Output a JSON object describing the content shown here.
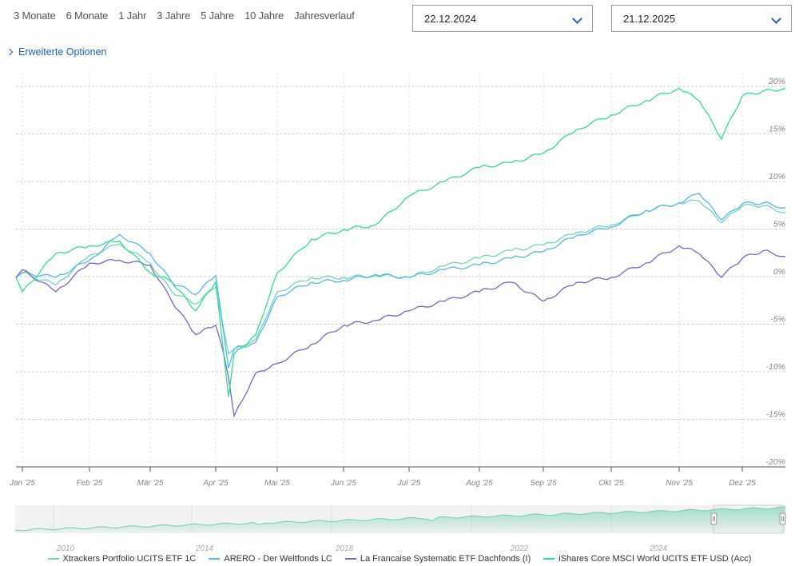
{
  "range_buttons": [
    "3 Monate",
    "6 Monate",
    "1 Jahr",
    "3 Jahre",
    "5 Jahre",
    "10 Jahre",
    "Jahresverlauf"
  ],
  "advanced_options_label": "Erweiterte Optionen",
  "date_from": "22.12.2024",
  "date_to": "21.12.2025",
  "colors": {
    "xtrackers": "#6fd9b4",
    "arero": "#52b8f0",
    "lafrancaise": "#7468cc",
    "ishares": "#2ee08c",
    "grid": "#cfcfcf",
    "axis": "#555555",
    "tick_label": "#888888",
    "link": "#1f5fc4"
  },
  "chart_data": {
    "type": "line",
    "title": "",
    "xlabel": "",
    "ylabel": "",
    "ylim": [
      -20,
      20
    ],
    "y_ticks": [
      "20%",
      "15%",
      "10%",
      "5%",
      "0%",
      "-5%",
      "-10%",
      "-15%",
      "-20%"
    ],
    "x_ticks": [
      "Jan '25",
      "Feb '25",
      "Mär '25",
      "Apr '25",
      "Mai '25",
      "Jun '25",
      "Jul '25",
      "Aug '25",
      "Sep '25",
      "Okt '25",
      "Nov '25",
      "Dez '25"
    ],
    "x": [
      "Dez 22 '24",
      "Jan 1",
      "Jan 15",
      "Feb 1",
      "Feb 15",
      "Mär 1",
      "Mär 10",
      "Mär 20",
      "Apr 1",
      "Apr 4",
      "Apr 8",
      "Apr 10",
      "Apr 22",
      "Mai 1",
      "Mai 15",
      "Jun 1",
      "Jun 15",
      "Jul 1",
      "Jul 15",
      "Aug 1",
      "Aug 15",
      "Sep 1",
      "Sep 15",
      "Okt 1",
      "Okt 15",
      "Nov 1",
      "Nov 10",
      "Nov 20",
      "Dez 1",
      "Dez 10",
      "Dez 19"
    ],
    "series": [
      {
        "name": "Xtrackers Portfolio UCITS ETF 1C",
        "values": [
          0,
          0.5,
          -0.8,
          2.3,
          3.5,
          1.5,
          -1.5,
          -2.8,
          -1.0,
          -5.5,
          -8.0,
          -7.5,
          -6.5,
          -1.5,
          0.0,
          0.0,
          0.2,
          0.0,
          1.2,
          2.0,
          2.8,
          3.4,
          4.7,
          5.5,
          7.0,
          7.8,
          8.0,
          5.7,
          7.5,
          7.5,
          6.8
        ]
      },
      {
        "name": "ARERO - Der Weltfonds LC",
        "values": [
          0,
          0.5,
          0.0,
          1.8,
          4.5,
          2.5,
          -0.5,
          -1.8,
          0.2,
          -5.8,
          -9.5,
          -7.5,
          -6.8,
          -2.0,
          -0.5,
          -0.3,
          0.3,
          0.0,
          0.8,
          1.3,
          2.0,
          2.7,
          4.4,
          5.3,
          7.0,
          7.8,
          8.8,
          6.0,
          7.7,
          7.8,
          7.3
        ]
      },
      {
        "name": "La Francaise Systematic ETF Dachfonds (I)",
        "values": [
          0,
          0.8,
          -1.5,
          1.5,
          1.8,
          1.3,
          -2.5,
          -6.0,
          -5.0,
          -8.0,
          -10.5,
          -14.5,
          -10.0,
          -9.0,
          -7.0,
          -5.0,
          -4.5,
          -3.5,
          -2.5,
          -1.5,
          -0.5,
          -2.5,
          -0.5,
          0.0,
          1.5,
          3.3,
          2.5,
          0.0,
          2.0,
          2.8,
          2.2
        ]
      },
      {
        "name": "iShares Core MSCI World UCITS ETF USD (Acc)",
        "values": [
          0,
          -1.5,
          2.5,
          3.3,
          3.8,
          0.5,
          -0.5,
          -3.5,
          -0.5,
          -8.0,
          -12.5,
          -8.0,
          -6.0,
          0.5,
          4.0,
          5.0,
          5.5,
          8.5,
          10.0,
          11.5,
          12.0,
          13.0,
          15.5,
          17.0,
          18.5,
          19.8,
          18.5,
          14.5,
          19.0,
          19.5,
          19.8
        ]
      }
    ],
    "legend_position": "bottom",
    "grid": true,
    "navigator": {
      "x_ticks": [
        "2010",
        "2014",
        "2018",
        "2022",
        "2024"
      ],
      "selected_range": [
        "22.12.2024",
        "21.12.2025"
      ]
    }
  }
}
